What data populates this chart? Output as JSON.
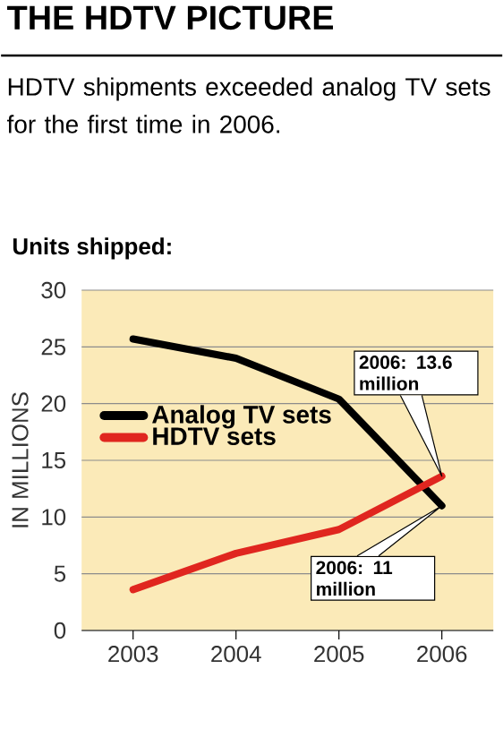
{
  "chart_data": {
    "type": "line",
    "title": "THE HDTV PICTURE",
    "subtitle": "HDTV shipments exceeded analog TV sets for the first time in 2006.",
    "ylabel": "IN MILLIONS",
    "annotations": [
      "Units shipped:",
      "2006: 13.6 million",
      "2006: 11 million"
    ],
    "categories": [
      "2003",
      "2004",
      "2005",
      "2006"
    ],
    "series": [
      {
        "name": "Analog TV sets",
        "color": "#000000",
        "values": [
          25.7,
          24.0,
          20.4,
          11
        ]
      },
      {
        "name": "HDTV sets",
        "color": "#e0261f",
        "values": [
          3.6,
          6.8,
          8.9,
          13.6
        ]
      }
    ],
    "ylim": [
      0,
      30
    ],
    "yticks": [
      0,
      5,
      10,
      15,
      20,
      25,
      30
    ],
    "grid": "y",
    "legend": "left"
  }
}
